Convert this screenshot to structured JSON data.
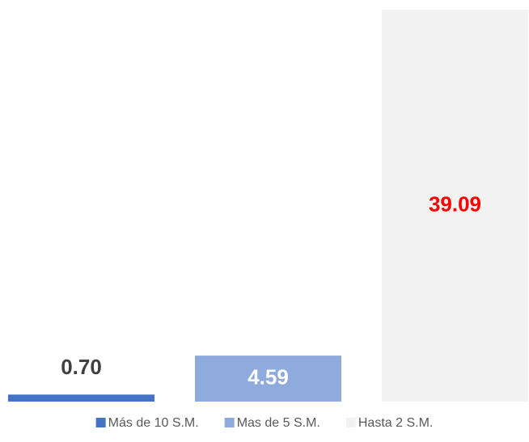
{
  "chart_data": {
    "type": "bar",
    "series": [
      {
        "name": "Más de 10 S.M.",
        "color": "#4472c4",
        "label_color": "#404040",
        "values": [
          0.7
        ],
        "value_labels": [
          "0.70"
        ]
      },
      {
        "name": "Mas de 5 S.M.",
        "color": "#8faadc",
        "label_color": "#ffffff",
        "values": [
          4.59
        ],
        "value_labels": [
          "4.59"
        ]
      },
      {
        "name": "Hasta 2 S.M.",
        "color": "#f2f2f2",
        "label_color": "#ff0000",
        "values": [
          39.09
        ],
        "value_labels": [
          "39.09"
        ]
      }
    ],
    "ylim": [
      0,
      39.09
    ],
    "legend": "bottom"
  }
}
